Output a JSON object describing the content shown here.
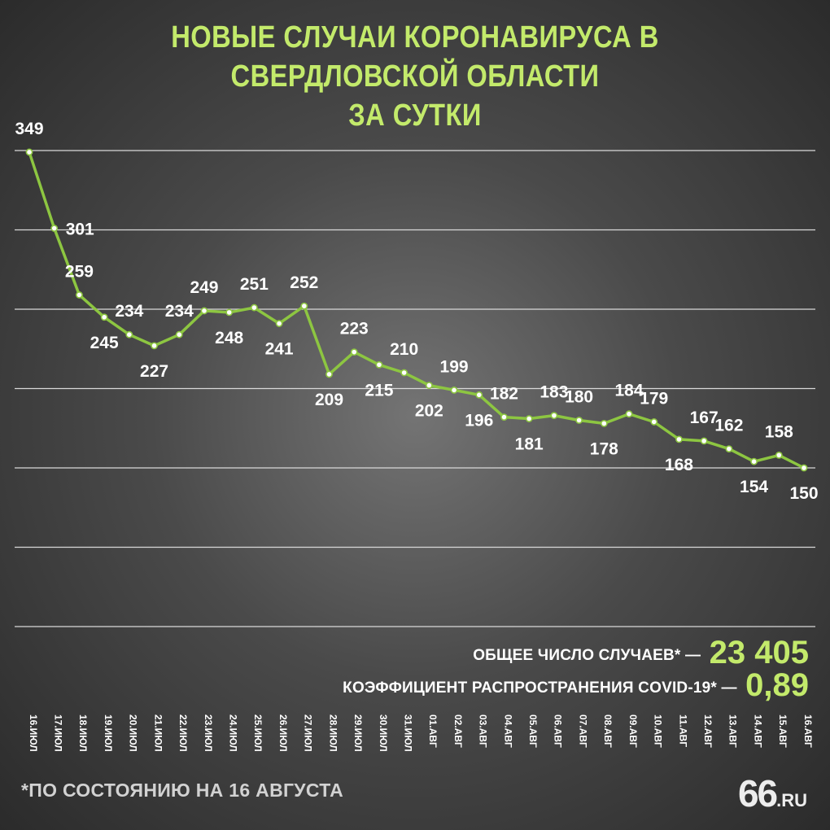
{
  "title_line1": "НОВЫЕ СЛУЧАИ КОРОНАВИРУСА В СВЕРДЛОВСКОЙ ОБЛАСТИ",
  "title_line2": "ЗА СУТКИ",
  "stats": {
    "total_label": "ОБЩЕЕ ЧИСЛО СЛУЧАЕВ* —",
    "total_value": "23 405",
    "coef_label": "КОЭФФИЦИЕНТ РАСПРОСТРАНЕНИЯ COVID-19* —",
    "coef_value": "0,89"
  },
  "footnote": "*ПО СОСТОЯНИЮ НА 16 АВГУСТА",
  "logo": {
    "main": "66",
    "suffix": ".RU"
  },
  "colors": {
    "accent": "#c3ea6b",
    "line": "#8dc641",
    "text": "#ffffff"
  },
  "chart_data": {
    "type": "line",
    "title": "НОВЫЕ СЛУЧАИ КОРОНАВИРУСА В СВЕРДЛОВСКОЙ ОБЛАСТИ ЗА СУТКИ",
    "categories": [
      "16.ИЮЛ",
      "17.ИЮЛ",
      "18.ИЮЛ",
      "19.ИЮЛ",
      "20.ИЮЛ",
      "21.ИЮЛ",
      "22.ИЮЛ",
      "23.ИЮЛ",
      "24.ИЮЛ",
      "25.ИЮЛ",
      "26.ИЮЛ",
      "27.ИЮЛ",
      "28.ИЮЛ",
      "29.ИЮЛ",
      "30.ИЮЛ",
      "31.ИЮЛ",
      "01.АВГ",
      "02.АВГ",
      "03.АВГ",
      "04.АВГ",
      "05.АВГ",
      "06.АВГ",
      "07.АВГ",
      "08.АВГ",
      "09.АВГ",
      "10.АВГ",
      "11.АВГ",
      "12.АВГ",
      "13.АВГ",
      "14.АВГ",
      "15.АВГ",
      "16.АВГ"
    ],
    "values": [
      349,
      301,
      259,
      245,
      234,
      227,
      234,
      249,
      248,
      251,
      241,
      252,
      209,
      223,
      215,
      210,
      202,
      199,
      196,
      182,
      181,
      183,
      180,
      178,
      184,
      179,
      168,
      167,
      162,
      154,
      158,
      150
    ],
    "label_positions": [
      "above",
      "right",
      "above",
      "below",
      "above",
      "below",
      "above",
      "above",
      "below",
      "above",
      "below",
      "above",
      "below",
      "above",
      "below",
      "above",
      "below",
      "above",
      "below",
      "above",
      "below",
      "above",
      "above",
      "below",
      "above",
      "above",
      "below",
      "above",
      "above",
      "below",
      "above",
      "below"
    ],
    "ylim": [
      50,
      350
    ],
    "grid": true,
    "xlabel": "",
    "ylabel": ""
  }
}
